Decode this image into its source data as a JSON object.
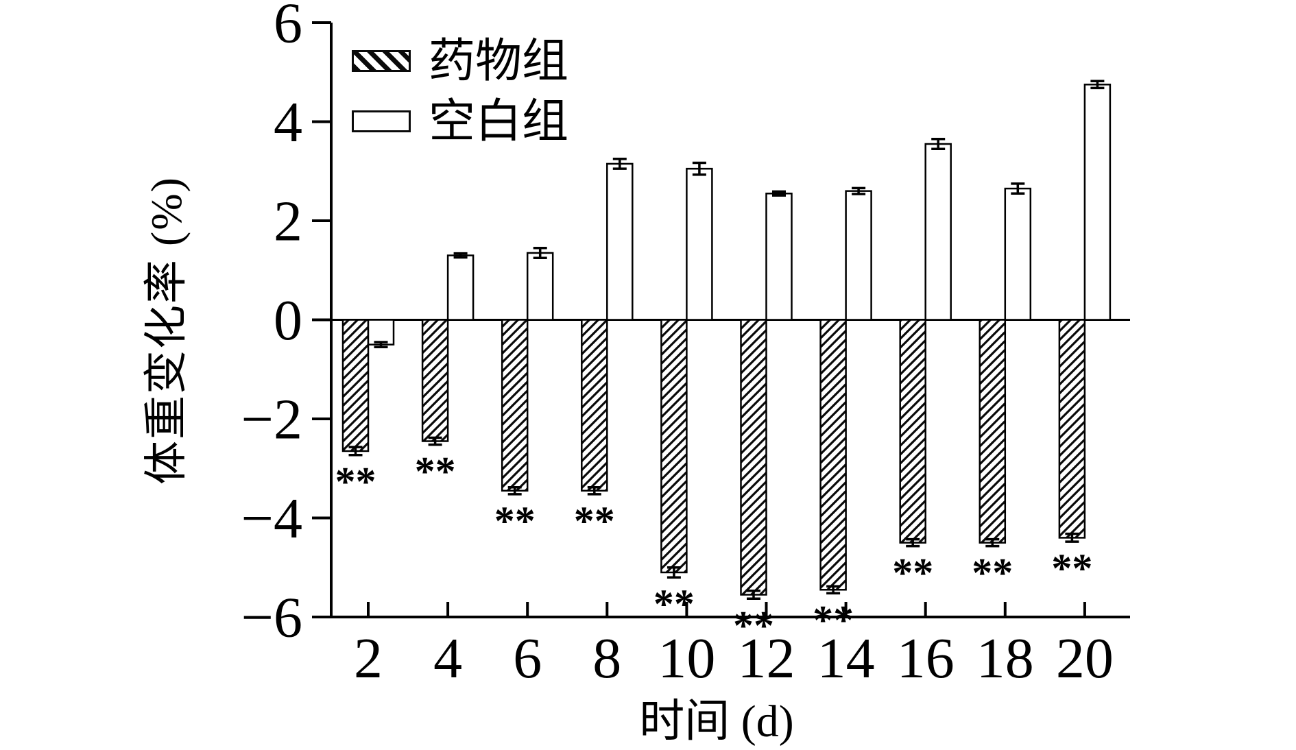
{
  "figure": {
    "background": "#ffffff",
    "ink_color": "#000000"
  },
  "chart_data": {
    "type": "bar",
    "title": "",
    "xlabel": "时间 (d)",
    "ylabel": "体重变化率 (%)",
    "categories": [
      "2",
      "4",
      "6",
      "8",
      "10",
      "12",
      "14",
      "16",
      "18",
      "20"
    ],
    "ylim": [
      -6,
      6
    ],
    "ytick_values": [
      6,
      4,
      2,
      0,
      -2,
      -4,
      -6
    ],
    "yticks": [
      "6",
      "4",
      "2",
      "0",
      "−2",
      "−4",
      "−6"
    ],
    "grid": false,
    "legend_position": "top-left-inside",
    "series": [
      {
        "name": "药物组",
        "key": "drug",
        "fill": "hatched-diagonal",
        "values": [
          -2.65,
          -2.45,
          -3.45,
          -3.45,
          -5.1,
          -5.55,
          -5.45,
          -4.5,
          -4.5,
          -4.4
        ],
        "errors": [
          0.08,
          0.07,
          0.07,
          0.07,
          0.1,
          0.08,
          0.07,
          0.07,
          0.07,
          0.08
        ],
        "significance": [
          "**",
          "**",
          "**",
          "**",
          "**",
          "**",
          "**",
          "**",
          "**",
          "**"
        ]
      },
      {
        "name": "空白组",
        "key": "blank",
        "fill": "open-white",
        "values": [
          -0.5,
          1.3,
          1.35,
          3.15,
          3.05,
          2.55,
          2.6,
          3.55,
          2.65,
          4.75
        ],
        "errors": [
          0.05,
          0.04,
          0.1,
          0.1,
          0.12,
          0.04,
          0.06,
          0.1,
          0.1,
          0.07
        ],
        "significance": [
          "",
          "",
          "",
          "",
          "",
          "",
          "",
          "",
          "",
          ""
        ]
      }
    ]
  }
}
